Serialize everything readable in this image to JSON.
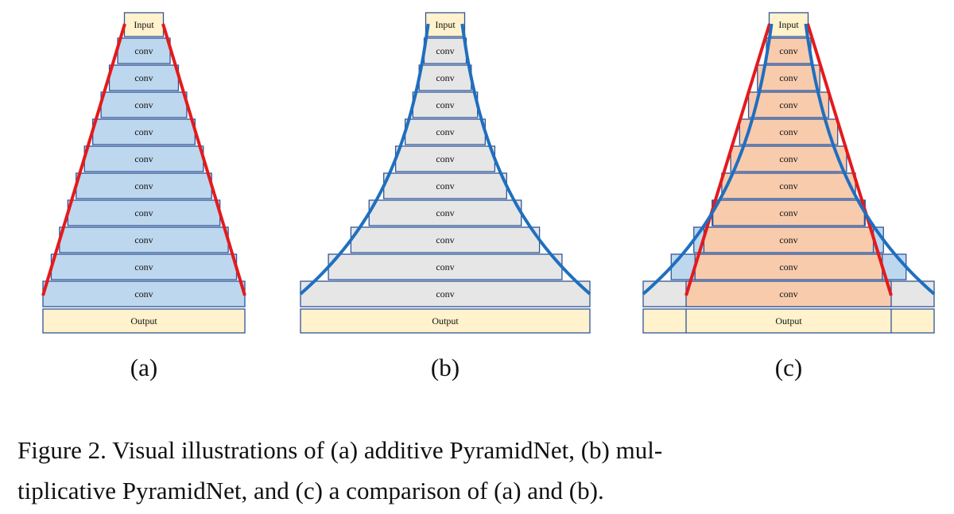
{
  "panels": [
    {
      "input": "Input",
      "layers": [
        "conv",
        "conv",
        "conv",
        "conv",
        "conv",
        "conv",
        "conv",
        "conv",
        "conv",
        "conv"
      ],
      "output": "Output",
      "label": "(a)"
    },
    {
      "input": "Input",
      "layers": [
        "conv",
        "conv",
        "conv",
        "conv",
        "conv",
        "conv",
        "conv",
        "conv",
        "conv",
        "conv"
      ],
      "output": "Output",
      "label": "(b)"
    },
    {
      "input": "Input",
      "layers": [
        "conv",
        "conv",
        "conv",
        "conv",
        "conv",
        "conv",
        "conv",
        "conv",
        "conv",
        "conv"
      ],
      "output": "Output",
      "label": "(c)"
    }
  ],
  "caption": {
    "lines": [
      "Figure 2. Visual illustrations of (a) additive PyramidNet, (b) mul-",
      "tiplicative PyramidNet, and (c) a comparison of (a) and (b)."
    ]
  }
}
